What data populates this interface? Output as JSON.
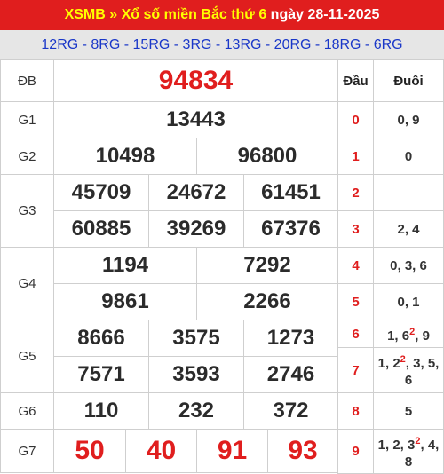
{
  "header": {
    "prefix": "XSMB » Xổ số miền Bắc thứ 6 ",
    "date": "ngày 28-11-2025"
  },
  "codes": "12RG - 8RG - 15RG - 3RG - 13RG - 20RG - 18RG - 6RG",
  "labels": {
    "db": "ĐB",
    "g1": "G1",
    "g2": "G2",
    "g3": "G3",
    "g4": "G4",
    "g5": "G5",
    "g6": "G6",
    "g7": "G7"
  },
  "prizes": {
    "db": "94834",
    "g1": "13443",
    "g2": [
      "10498",
      "96800"
    ],
    "g3": [
      "45709",
      "24672",
      "61451",
      "60885",
      "39269",
      "67376"
    ],
    "g4": [
      "1194",
      "7292",
      "9861",
      "2266"
    ],
    "g5": [
      "8666",
      "3575",
      "1273",
      "7571",
      "3593",
      "2746"
    ],
    "g6": [
      "110",
      "232",
      "372"
    ],
    "g7": [
      "50",
      "40",
      "91",
      "93"
    ]
  },
  "loto": {
    "head_label": "Đầu",
    "tail_label": "Đuôi",
    "rows": [
      {
        "dau": "0",
        "duoi": [
          {
            "t": "0"
          },
          {
            "t": ", "
          },
          {
            "t": "9"
          }
        ]
      },
      {
        "dau": "1",
        "duoi": [
          {
            "t": "0"
          }
        ]
      },
      {
        "dau": "2",
        "duoi": []
      },
      {
        "dau": "3",
        "duoi": [
          {
            "t": "2"
          },
          {
            "t": ", "
          },
          {
            "t": "4"
          }
        ]
      },
      {
        "dau": "4",
        "duoi": [
          {
            "t": "0"
          },
          {
            "t": ", "
          },
          {
            "t": "3"
          },
          {
            "t": ", "
          },
          {
            "t": "6"
          }
        ]
      },
      {
        "dau": "5",
        "duoi": [
          {
            "t": "0"
          },
          {
            "t": ", "
          },
          {
            "t": "1"
          }
        ]
      },
      {
        "dau": "6",
        "duoi": [
          {
            "t": "1"
          },
          {
            "t": ", "
          },
          {
            "t": "6"
          },
          {
            "t": "2",
            "sup": true
          },
          {
            "t": ", "
          },
          {
            "t": "9"
          }
        ]
      },
      {
        "dau": "7",
        "duoi": [
          {
            "t": "1"
          },
          {
            "t": ", "
          },
          {
            "t": "2"
          },
          {
            "t": "2",
            "sup": true
          },
          {
            "t": ", "
          },
          {
            "t": "3"
          },
          {
            "t": ", "
          },
          {
            "t": "5"
          },
          {
            "t": ", "
          },
          {
            "t": "6"
          }
        ]
      },
      {
        "dau": "8",
        "duoi": [
          {
            "t": "5"
          }
        ]
      },
      {
        "dau": "9",
        "duoi": [
          {
            "t": "1"
          },
          {
            "t": ", "
          },
          {
            "t": "2"
          },
          {
            "t": ", "
          },
          {
            "t": "3"
          },
          {
            "t": "2",
            "sup": true
          },
          {
            "t": ", "
          },
          {
            "t": "4"
          },
          {
            "t": ", "
          },
          {
            "t": "8"
          }
        ]
      }
    ]
  },
  "colors": {
    "accent": "#e01e1e",
    "header_text": "#ffff00",
    "codes_text": "#1a37c8",
    "codes_bg": "#e6e6e6"
  }
}
